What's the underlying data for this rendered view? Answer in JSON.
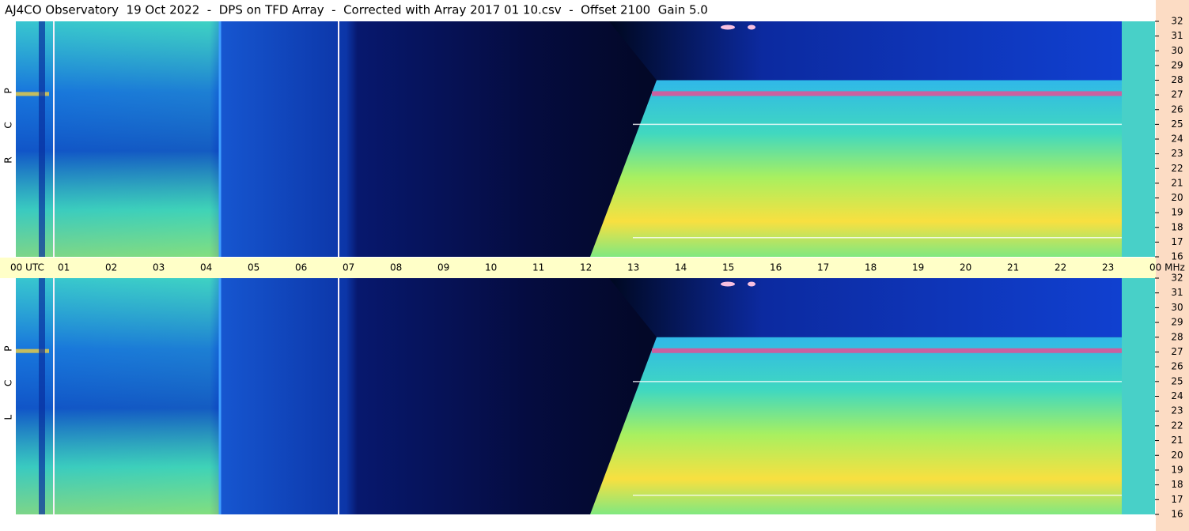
{
  "title": "AJ4CO Observatory  19 Oct 2022  -  DPS on TFD Array  -  Corrected with Array 2017 01 10.csv  -  Offset 2100  Gain 5.0",
  "time_axis": {
    "labels": [
      "00 UTC",
      "01",
      "02",
      "03",
      "04",
      "05",
      "06",
      "07",
      "08",
      "09",
      "10",
      "11",
      "12",
      "13",
      "14",
      "15",
      "16",
      "17",
      "18",
      "19",
      "20",
      "21",
      "22",
      "23",
      "00 MHz"
    ]
  },
  "chart_data": [
    {
      "type": "spectrogram",
      "panel_label": "R C P",
      "ylim": [
        16,
        32
      ],
      "yticks": [
        16,
        17,
        18,
        19,
        20,
        21,
        22,
        23,
        24,
        25,
        26,
        27,
        28,
        29,
        30,
        31,
        32
      ]
    },
    {
      "type": "spectrogram",
      "panel_label": "L C P",
      "ylim": [
        16,
        32
      ],
      "yticks": [
        16,
        17,
        18,
        19,
        20,
        21,
        22,
        23,
        24,
        25,
        26,
        27,
        28,
        29,
        30,
        31,
        32
      ]
    }
  ]
}
